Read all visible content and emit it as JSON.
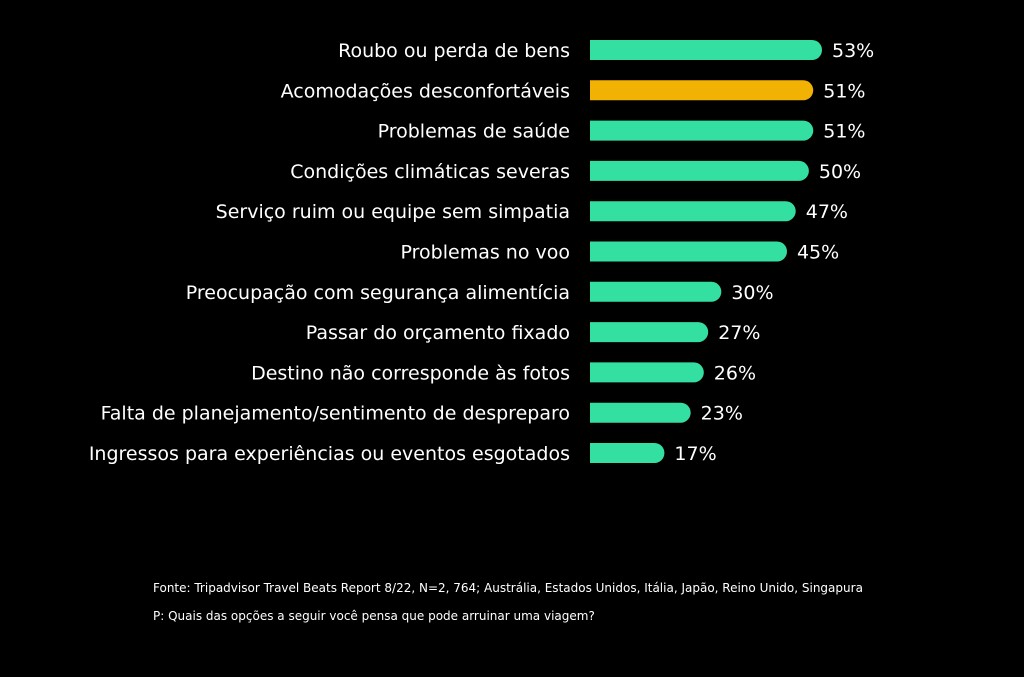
{
  "chart_data": {
    "type": "bar",
    "orientation": "horizontal",
    "categories": [
      "Roubo ou perda de bens",
      "Acomodações desconfortáveis",
      "Problemas de saúde",
      "Condições climáticas severas",
      "Serviço ruim ou equipe sem simpatia",
      "Problemas no voo",
      "Preocupação com segurança alimentícia",
      "Passar do orçamento fixado",
      "Destino não corresponde às fotos",
      "Falta de planejamento/sentimento de despreparo",
      "Ingressos para experiências ou eventos esgotados"
    ],
    "values": [
      53,
      51,
      51,
      50,
      47,
      45,
      30,
      27,
      26,
      23,
      17
    ],
    "value_labels": [
      "53%",
      "51%",
      "51%",
      "50%",
      "47%",
      "45%",
      "30%",
      "27%",
      "26%",
      "23%",
      "17%"
    ],
    "unit": "%",
    "highlight_index": 1,
    "colors": {
      "bar": "#34e0a1",
      "highlight": "#f2b203",
      "text": "#ffffff",
      "background": "#000000"
    },
    "grid": false,
    "legend": "none"
  },
  "footnotes": {
    "source": "Fonte: Tripadvisor Travel Beats Report 8/22, N=2, 764; Austrália, Estados Unidos, Itália, Japão, Reino Unido, Singapura",
    "question": "P: Quais das opções a seguir você pensa que pode arruinar uma viagem?"
  }
}
